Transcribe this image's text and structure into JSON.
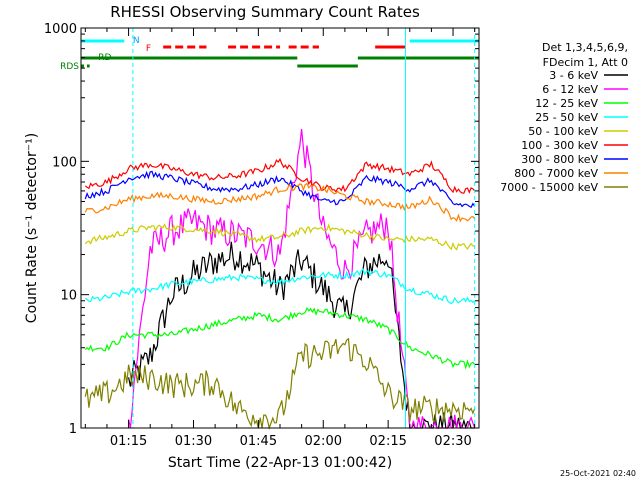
{
  "chart_data": {
    "type": "line",
    "title": "RHESSI Observing Summary Count Rates",
    "xlabel": "Start Time (22-Apr-13 01:00:42)",
    "ylabel": "Count Rate (s⁻¹ detector⁻¹)",
    "yscale": "log",
    "ylim": [
      1,
      1000
    ],
    "xlim": [
      "01:04",
      "02:36"
    ],
    "x_ticks": [
      "01:15",
      "01:30",
      "01:45",
      "02:00",
      "02:15",
      "02:30"
    ],
    "y_ticks": [
      "1",
      "10",
      "100",
      "1000"
    ],
    "legend_header": [
      "Det 1,3,4,5,6,9,",
      "FDecim 1, Att 0"
    ],
    "legend_position": "right",
    "timestamp": "25-Oct-2021 02:40",
    "x": [
      "01:05",
      "01:10",
      "01:15",
      "01:20",
      "01:25",
      "01:30",
      "01:35",
      "01:40",
      "01:45",
      "01:50",
      "01:55",
      "02:00",
      "02:05",
      "02:10",
      "02:15",
      "02:20",
      "02:25",
      "02:30",
      "02:35"
    ],
    "series": [
      {
        "name": "3 - 6 keV",
        "color": "#000000",
        "values": [
          null,
          null,
          2.2,
          3.4,
          10,
          14,
          18,
          20,
          16,
          11,
          18,
          11,
          7,
          16,
          20,
          1,
          1,
          1,
          1
        ]
      },
      {
        "name": "6 - 12 keV",
        "color": "#ff00ff",
        "values": [
          null,
          null,
          1,
          22,
          30,
          35,
          30,
          28,
          25,
          20,
          150,
          30,
          15,
          28,
          35,
          1,
          1,
          1,
          1
        ]
      },
      {
        "name": "12 - 25 keV",
        "color": "#00ff00",
        "values": [
          4,
          4,
          5,
          5,
          5,
          5.5,
          6,
          6.5,
          7,
          6.5,
          7.5,
          7.5,
          7,
          6.5,
          5.5,
          4,
          3.5,
          3,
          3
        ]
      },
      {
        "name": "25 - 50 keV",
        "color": "#00ffff",
        "values": [
          9,
          9.5,
          10.5,
          11,
          12,
          12.5,
          13,
          13.5,
          13,
          12.5,
          13.5,
          14,
          14,
          15,
          14,
          11,
          10,
          9,
          9
        ]
      },
      {
        "name": "50 - 100 keV",
        "color": "#cccc00",
        "values": [
          25,
          27,
          30,
          32,
          32,
          31,
          30,
          28,
          26,
          27,
          30,
          32,
          30,
          28,
          26,
          26,
          26,
          23,
          23
        ]
      },
      {
        "name": "100 - 300 keV",
        "color": "#ff0000",
        "values": [
          64,
          70,
          88,
          95,
          88,
          80,
          75,
          78,
          85,
          100,
          75,
          63,
          62,
          95,
          88,
          80,
          95,
          62,
          60
        ]
      },
      {
        "name": "300 - 800 keV",
        "color": "#0000ff",
        "values": [
          55,
          60,
          75,
          80,
          75,
          68,
          62,
          62,
          67,
          75,
          60,
          50,
          50,
          75,
          70,
          62,
          72,
          48,
          46
        ]
      },
      {
        "name": "800 - 7000 keV",
        "color": "#ff8000",
        "values": [
          42,
          45,
          52,
          55,
          55,
          52,
          50,
          52,
          55,
          62,
          65,
          62,
          55,
          50,
          48,
          45,
          52,
          38,
          37
        ]
      },
      {
        "name": "7000 - 15000 keV",
        "color": "#808000",
        "values": [
          1.6,
          1.8,
          2.4,
          2.4,
          2.1,
          2.1,
          2.2,
          1.4,
          1.2,
          1.2,
          3.5,
          3.6,
          4.2,
          3.2,
          1.8,
          1.4,
          1.4,
          1.4,
          1.4
        ]
      }
    ],
    "flag_labels": {
      "n": "N",
      "f": "F",
      "rd": "RD",
      "ss": "RDS"
    }
  }
}
